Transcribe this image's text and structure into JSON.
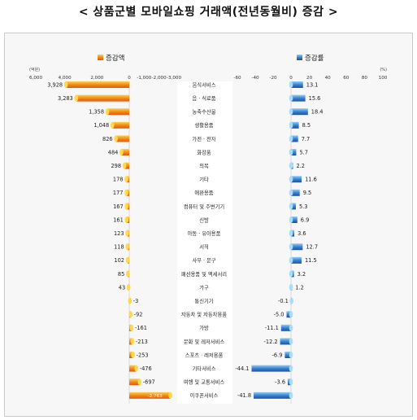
{
  "title": "< 상품군별 모바일쇼핑 거래액(전년동월비) 증감 >",
  "chart_data": {
    "type": "bar",
    "left_legend": "증감액",
    "right_legend": "증감률",
    "left_unit": "(억원)",
    "right_unit": "(%)",
    "left_ticks": [
      "6,000",
      "4,000",
      "2,000",
      "0",
      "-1,000",
      "-2,000",
      "-3,000"
    ],
    "right_ticks": [
      "-60",
      "-40",
      "-20",
      "0",
      "20",
      "40",
      "60",
      "80",
      "100"
    ],
    "left_xlim": [
      6000,
      -3000
    ],
    "right_xlim": [
      -60,
      100
    ],
    "colors": {
      "left_bar": "#f08a14",
      "right_bar": "#2f6fc4"
    },
    "categories": [
      "음식서비스",
      "음 · 식료품",
      "농축수산물",
      "생활용품",
      "가전 · 전자",
      "화장품",
      "의복",
      "기타",
      "애완용품",
      "컴퓨터 및 주변기기",
      "신발",
      "아동 · 유아용품",
      "서적",
      "사무 · 문구",
      "패션용품 및 액세서리",
      "가구",
      "통신기기",
      "자동차 및 자동차용품",
      "가방",
      "문화 및 레저서비스",
      "스포츠 · 레저용품",
      "기타서비스",
      "여행 및 교통서비스",
      "이쿠폰서비스"
    ],
    "series": [
      {
        "name": "증감액",
        "values": [
          3928,
          3283,
          1358,
          1048,
          826,
          484,
          298,
          178,
          177,
          167,
          161,
          123,
          118,
          102,
          85,
          43,
          -3,
          -92,
          -161,
          -213,
          -253,
          -476,
          -697,
          -2763
        ],
        "labels": [
          "3,928",
          "3,283",
          "1,358",
          "1,048",
          "826",
          "484",
          "298",
          "178",
          "177",
          "167",
          "161",
          "123",
          "118",
          "102",
          "85",
          "43",
          "-3",
          "-92",
          "-161",
          "-213",
          "-253",
          "-476",
          "-697",
          "-2,763"
        ]
      },
      {
        "name": "증감률",
        "values": [
          13.1,
          15.6,
          18.4,
          8.5,
          7.7,
          5.7,
          2.2,
          11.6,
          9.5,
          5.3,
          6.9,
          3.6,
          12.7,
          11.5,
          3.2,
          1.2,
          -0.1,
          -5.0,
          -11.1,
          -12.2,
          -6.9,
          -44.1,
          -3.6,
          -41.8
        ],
        "labels": [
          "13.1",
          "15.6",
          "18.4",
          "8.5",
          "7.7",
          "5.7",
          "2.2",
          "11.6",
          "9.5",
          "5.3",
          "6.9",
          "3.6",
          "12.7",
          "11.5",
          "3.2",
          "1.2",
          "-0.1",
          "-5.0",
          "-11.1",
          "-12.2",
          "-6.9",
          "-44.1",
          "-3.6",
          "-41.8"
        ]
      }
    ]
  }
}
